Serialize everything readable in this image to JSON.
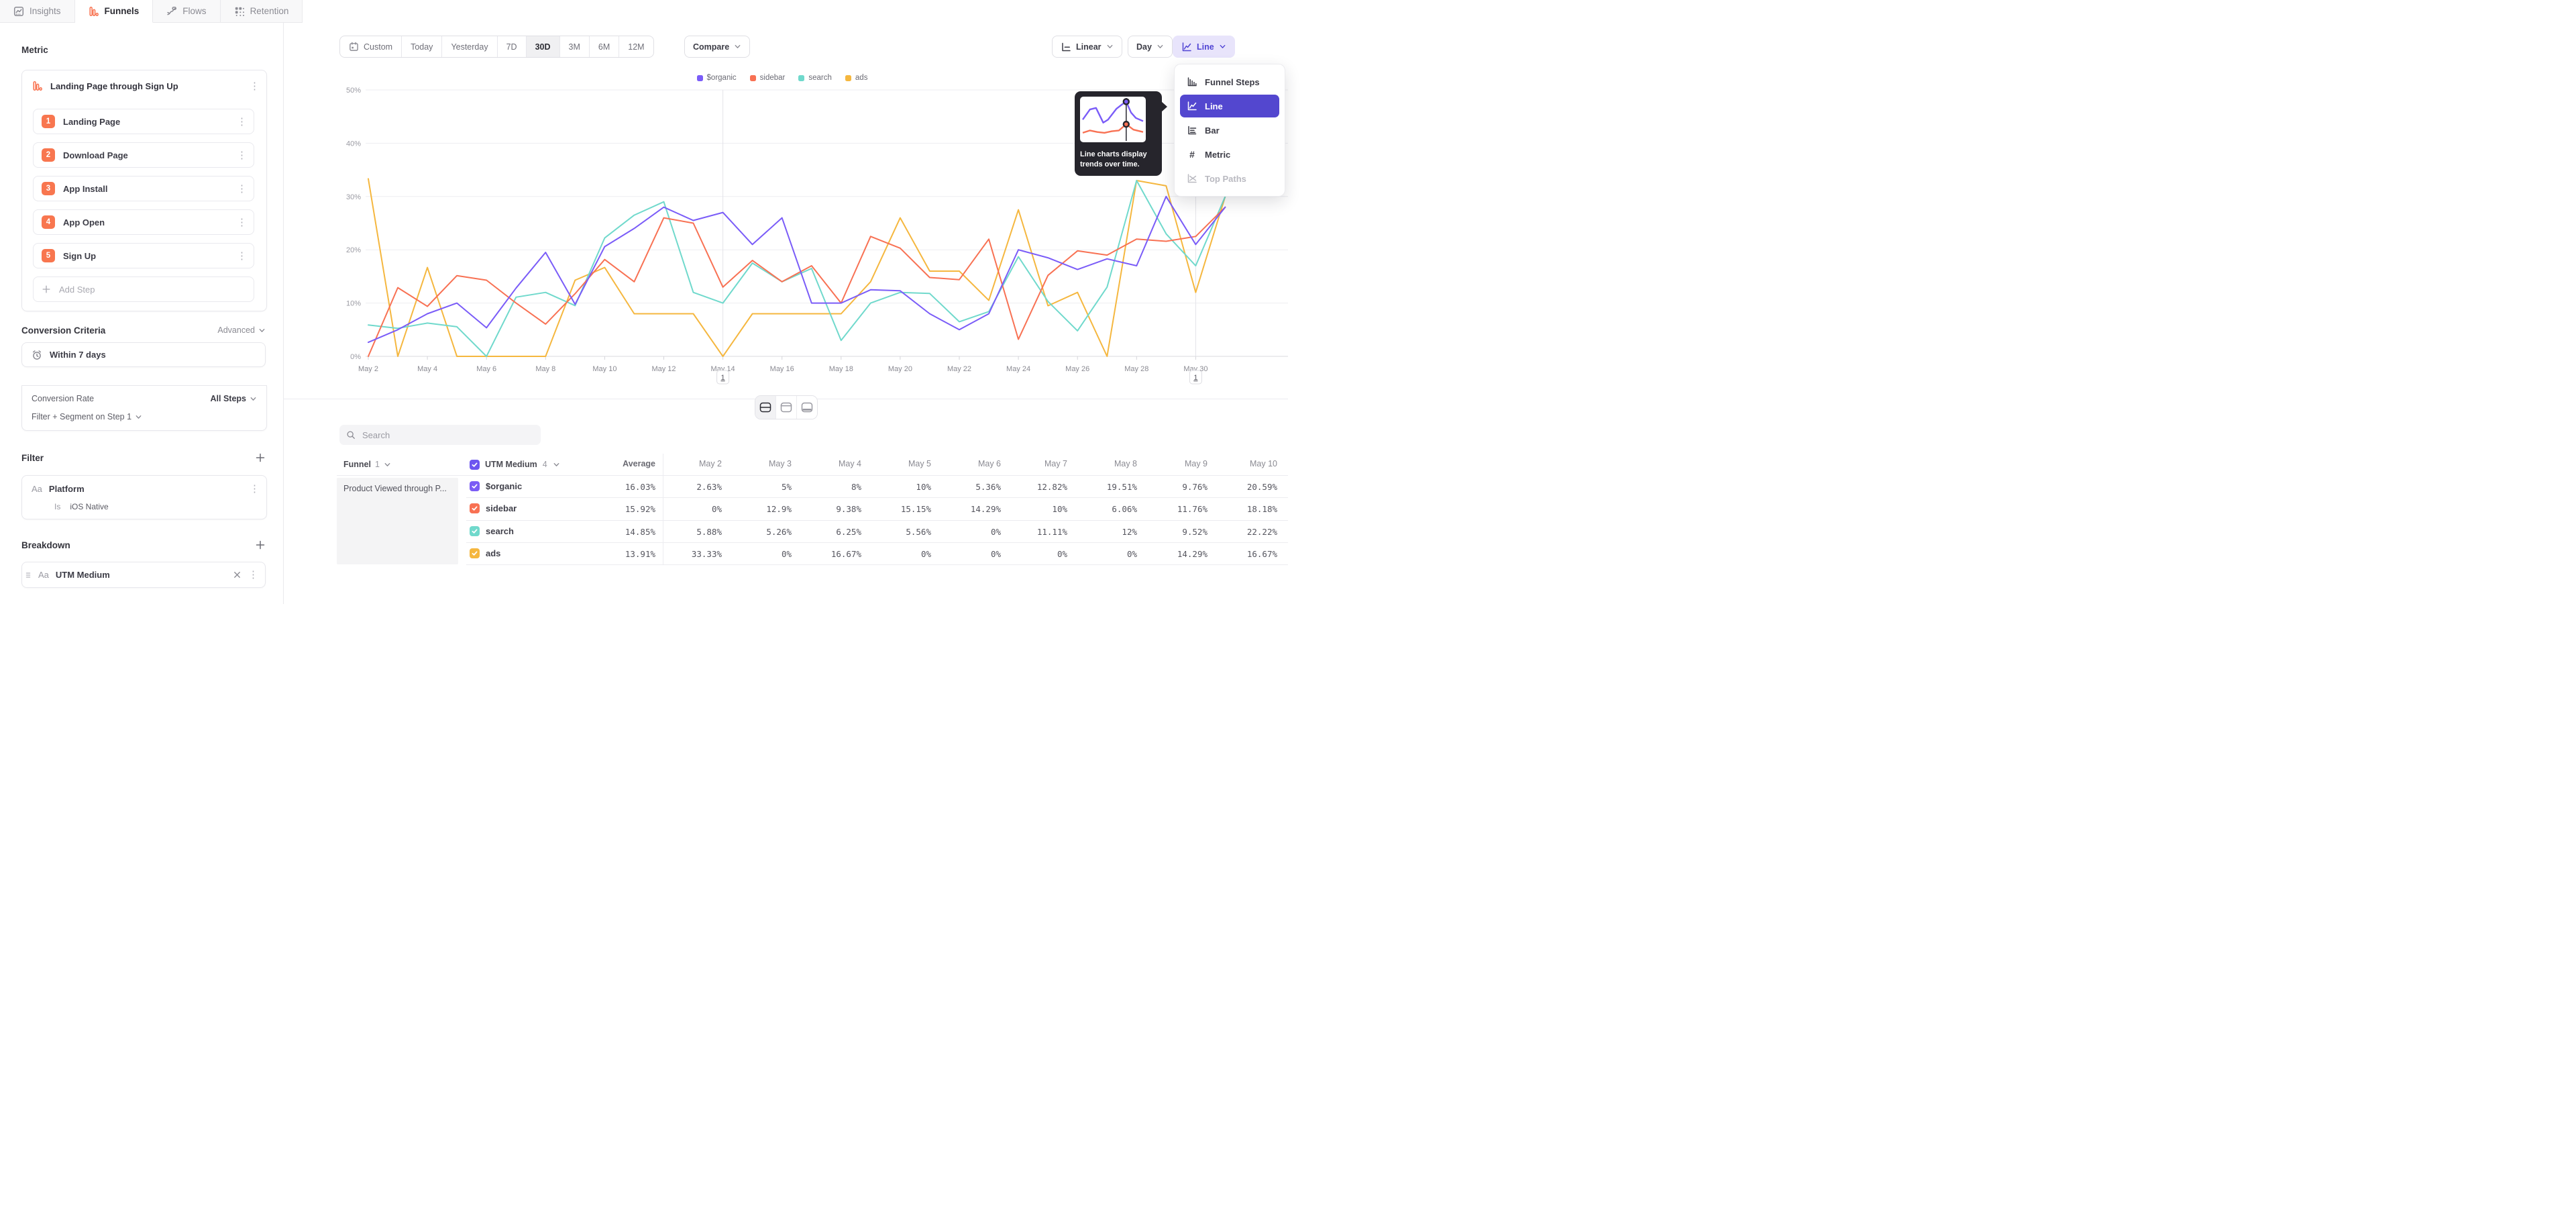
{
  "tabs": [
    {
      "label": "Insights",
      "icon": "insights-icon",
      "active": false
    },
    {
      "label": "Funnels",
      "icon": "funnels-icon",
      "active": true
    },
    {
      "label": "Flows",
      "icon": "flows-icon",
      "active": false
    },
    {
      "label": "Retention",
      "icon": "retention-icon",
      "active": false
    }
  ],
  "sidebar": {
    "metric_heading": "Metric",
    "metric_title": "Landing Page through Sign Up",
    "steps": [
      {
        "num": "1",
        "label": "Landing Page"
      },
      {
        "num": "2",
        "label": "Download Page"
      },
      {
        "num": "3",
        "label": "App Install"
      },
      {
        "num": "4",
        "label": "App Open"
      },
      {
        "num": "5",
        "label": "Sign Up"
      }
    ],
    "add_step_label": "Add Step",
    "conversion_criteria": {
      "heading": "Conversion Criteria",
      "advanced_label": "Advanced",
      "window_label": "Within 7 days",
      "rate_label": "Conversion Rate",
      "rate_value": "All Steps",
      "segment_label": "Filter + Segment on Step 1"
    },
    "filter": {
      "heading": "Filter",
      "type_badge": "Aa",
      "property": "Platform",
      "operator": "Is",
      "value": "iOS Native"
    },
    "breakdown": {
      "heading": "Breakdown",
      "type_badge": "Aa",
      "property": "UTM Medium"
    }
  },
  "toolbar": {
    "date_ranges": [
      "Custom",
      "Today",
      "Yesterday",
      "7D",
      "30D",
      "3M",
      "6M",
      "12M"
    ],
    "active_range": "30D",
    "compare_label": "Compare",
    "scale_label": "Linear",
    "granularity_label": "Day",
    "chart_type_label": "Line"
  },
  "chart_type_menu": {
    "items": [
      {
        "label": "Funnel Steps",
        "icon": "funnel-steps-icon",
        "selected": false,
        "disabled": false
      },
      {
        "label": "Line",
        "icon": "line-chart-icon",
        "selected": true,
        "disabled": false
      },
      {
        "label": "Bar",
        "icon": "bar-chart-icon",
        "selected": false,
        "disabled": false
      },
      {
        "label": "Metric",
        "icon": "metric-icon",
        "selected": false,
        "disabled": false
      },
      {
        "label": "Top Paths",
        "icon": "top-paths-icon",
        "selected": false,
        "disabled": true
      }
    ],
    "tooltip": {
      "text": "Line charts display trends over time.",
      "mini_chart": {
        "marker_x": 0.72,
        "series": [
          {
            "color": "#7a5cf8",
            "points": [
              [
                0,
                0.52
              ],
              [
                0.12,
                0.26
              ],
              [
                0.22,
                0.22
              ],
              [
                0.34,
                0.6
              ],
              [
                0.42,
                0.52
              ],
              [
                0.56,
                0.24
              ],
              [
                0.66,
                0.12
              ],
              [
                0.72,
                0.06
              ],
              [
                0.8,
                0.34
              ],
              [
                0.88,
                0.48
              ],
              [
                1,
                0.56
              ]
            ]
          },
          {
            "color": "#f87153",
            "points": [
              [
                0,
                0.86
              ],
              [
                0.12,
                0.8
              ],
              [
                0.24,
                0.84
              ],
              [
                0.36,
                0.86
              ],
              [
                0.48,
                0.82
              ],
              [
                0.6,
                0.8
              ],
              [
                0.72,
                0.64
              ],
              [
                0.84,
                0.78
              ],
              [
                1,
                0.84
              ]
            ]
          }
        ]
      }
    }
  },
  "panel_toggles": [
    {
      "name": "split-view",
      "icon": "split-view-icon",
      "active": true
    },
    {
      "name": "chart-only",
      "icon": "chart-only-icon",
      "active": false
    },
    {
      "name": "table-only",
      "icon": "table-only-icon",
      "active": false
    }
  ],
  "search": {
    "placeholder": "Search"
  },
  "table": {
    "funnel_header": {
      "label": "Funnel",
      "count": "1"
    },
    "breakdown_header": {
      "label": "UTM Medium",
      "count": "4"
    },
    "average_label": "Average",
    "date_columns": [
      "May 2",
      "May 3",
      "May 4",
      "May 5",
      "May 6",
      "May 7",
      "May 8",
      "May 9",
      "May 10"
    ],
    "funnel_cell": "Product Viewed through P...",
    "rows": [
      {
        "name": "$organic",
        "color": "#7b5cf5",
        "average": "16.03%",
        "values": [
          "2.63%",
          "5%",
          "8%",
          "10%",
          "5.36%",
          "12.82%",
          "19.51%",
          "9.76%",
          "20.59%"
        ]
      },
      {
        "name": "sidebar",
        "color": "#f87153",
        "average": "15.92%",
        "values": [
          "0%",
          "12.9%",
          "9.38%",
          "15.15%",
          "14.29%",
          "10%",
          "6.06%",
          "11.76%",
          "18.18%"
        ]
      },
      {
        "name": "search",
        "color": "#70d9cc",
        "average": "14.85%",
        "values": [
          "5.88%",
          "5.26%",
          "6.25%",
          "5.56%",
          "0%",
          "11.11%",
          "12%",
          "9.52%",
          "22.22%"
        ]
      },
      {
        "name": "ads",
        "color": "#f5b73f",
        "average": "13.91%",
        "values": [
          "33.33%",
          "0%",
          "16.67%",
          "0%",
          "0%",
          "0%",
          "0%",
          "14.29%",
          "16.67%"
        ]
      }
    ]
  },
  "chart_data": {
    "type": "line",
    "title": "",
    "x": [
      "May 2",
      "May 3",
      "May 4",
      "May 5",
      "May 6",
      "May 7",
      "May 8",
      "May 9",
      "May 10",
      "May 11",
      "May 12",
      "May 13",
      "May 14",
      "May 15",
      "May 16",
      "May 17",
      "May 18",
      "May 19",
      "May 20",
      "May 21",
      "May 22",
      "May 23",
      "May 24",
      "May 25",
      "May 26",
      "May 27",
      "May 28",
      "May 29",
      "May 30",
      "May 31"
    ],
    "x_tick_every": 2,
    "ylim": [
      0,
      50
    ],
    "y_ticks": [
      "0%",
      "10%",
      "20%",
      "30%",
      "40%",
      "50%"
    ],
    "grid": true,
    "legend_position": "top",
    "annotations": [
      {
        "label": "1",
        "x": "May 14"
      },
      {
        "label": "1",
        "x": "May 30"
      }
    ],
    "series": [
      {
        "name": "$organic",
        "color": "#7a5cf8",
        "values": [
          2.63,
          5,
          8,
          10,
          5.36,
          12.82,
          19.51,
          9.76,
          20.59,
          24,
          28,
          25.5,
          27,
          21,
          26,
          10,
          10,
          12.5,
          12.3,
          8,
          5,
          8,
          20,
          18.5,
          16.3,
          18.3,
          17,
          30,
          21,
          28
        ]
      },
      {
        "name": "sidebar",
        "color": "#f87153",
        "values": [
          0,
          12.9,
          9.38,
          15.15,
          14.29,
          10,
          6.06,
          11.76,
          18.18,
          14,
          26,
          25,
          13,
          18,
          14,
          17,
          10,
          22.5,
          20.3,
          14.8,
          14.4,
          22,
          3.2,
          15.2,
          19.8,
          19,
          22,
          21.6,
          22.5,
          28
        ]
      },
      {
        "name": "search",
        "color": "#70d9cc",
        "values": [
          5.88,
          5.26,
          6.25,
          5.56,
          0,
          11.11,
          12,
          9.52,
          22.22,
          26.5,
          29,
          12,
          10,
          17.5,
          14,
          16.5,
          3,
          10,
          12,
          11.8,
          6.5,
          8.4,
          18.7,
          10.3,
          4.8,
          13,
          33,
          23,
          17,
          30
        ]
      },
      {
        "name": "ads",
        "color": "#f5b73f",
        "values": [
          33.33,
          0,
          16.67,
          0,
          0,
          0,
          0,
          14.29,
          16.67,
          8,
          8,
          8,
          0,
          8,
          8,
          8,
          8,
          14,
          26,
          16,
          16,
          10.5,
          27.5,
          9.5,
          12,
          0,
          33,
          32,
          12,
          30
        ]
      }
    ]
  }
}
